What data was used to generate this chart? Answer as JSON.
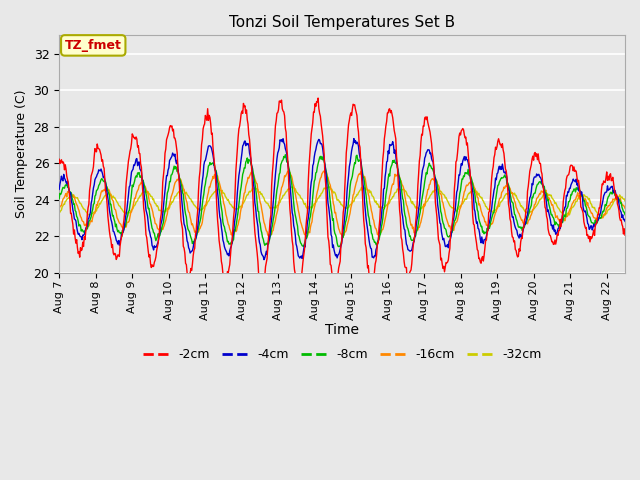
{
  "title": "Tonzi Soil Temperatures Set B",
  "xlabel": "Time",
  "ylabel": "Soil Temperature (C)",
  "ylim": [
    20,
    33
  ],
  "yticks": [
    20,
    22,
    24,
    26,
    28,
    30,
    32
  ],
  "date_labels": [
    "Aug 7",
    "Aug 8",
    "Aug 9",
    "Aug 10",
    "Aug 11",
    "Aug 12",
    "Aug 13",
    "Aug 14",
    "Aug 15",
    "Aug 16",
    "Aug 17",
    "Aug 18",
    "Aug 19",
    "Aug 20",
    "Aug 21",
    "Aug 22"
  ],
  "annotation_text": "TZ_fmet",
  "annotation_color": "#cc0000",
  "annotation_bg": "#ffffcc",
  "annotation_border": "#aaaa00",
  "series_colors": [
    "#ff0000",
    "#0000cc",
    "#00bb00",
    "#ff8800",
    "#cccc00"
  ],
  "series_labels": [
    "-2cm",
    "-4cm",
    "-8cm",
    "-16cm",
    "-32cm"
  ],
  "background_color": "#e8e8e8",
  "plot_bg_color": "#e8e8e8",
  "grid_color": "#ffffff"
}
